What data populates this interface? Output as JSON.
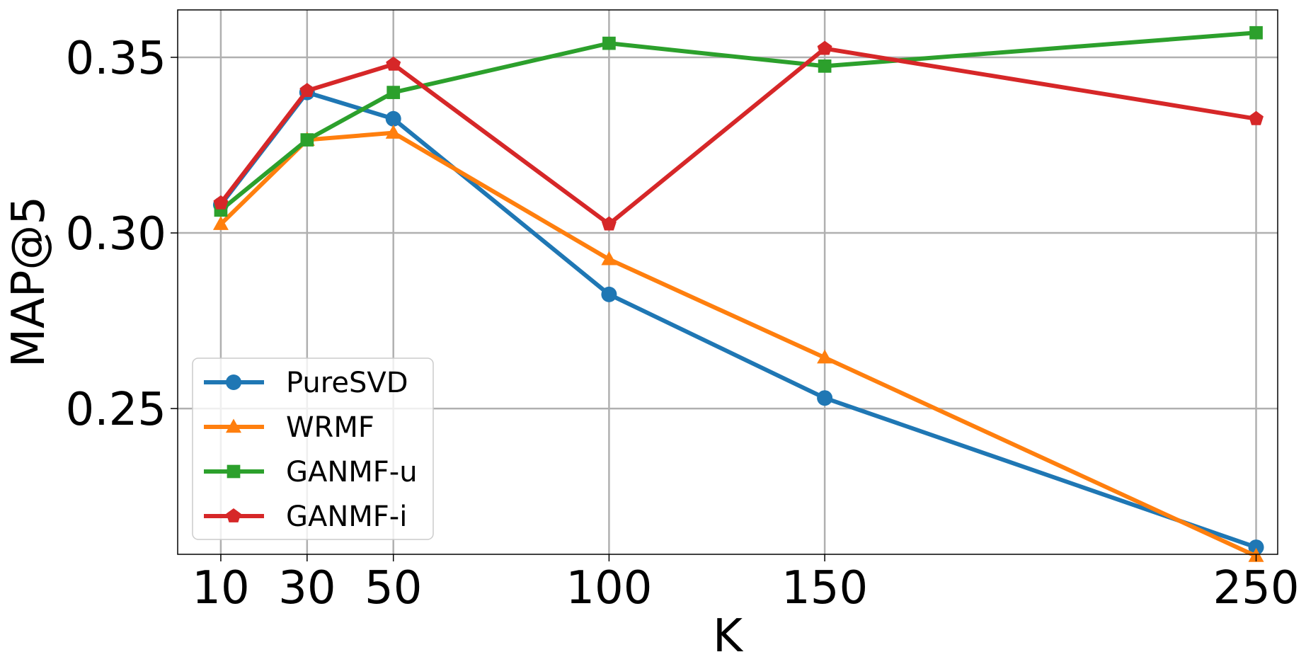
{
  "chart_data": {
    "type": "line",
    "title": "",
    "xlabel": "K",
    "ylabel": "MAP@5",
    "x": [
      10,
      30,
      50,
      100,
      150,
      250
    ],
    "x_tick_labels": [
      "10",
      "30",
      "50",
      "100",
      "150",
      "250"
    ],
    "y_ticks": [
      0.25,
      0.3,
      0.35
    ],
    "y_tick_labels": [
      "0.25",
      "0.30",
      "0.35"
    ],
    "xlim": [
      0,
      255
    ],
    "ylim": [
      0.2085,
      0.3635
    ],
    "grid": true,
    "legend_position": "lower-left",
    "series": [
      {
        "name": "PureSVD",
        "color": "#1f77b4",
        "marker": "circle",
        "values": [
          0.308,
          0.34,
          0.3325,
          0.2825,
          0.253,
          0.2105
        ]
      },
      {
        "name": "WRMF",
        "color": "#ff7f0e",
        "marker": "triangle",
        "values": [
          0.3025,
          0.3265,
          0.3285,
          0.2925,
          0.2645,
          0.208
        ]
      },
      {
        "name": "GANMF-u",
        "color": "#2ca02c",
        "marker": "square",
        "values": [
          0.3065,
          0.3265,
          0.34,
          0.354,
          0.3475,
          0.357
        ]
      },
      {
        "name": "GANMF-i",
        "color": "#d62728",
        "marker": "pentagon",
        "values": [
          0.3085,
          0.3405,
          0.348,
          0.3025,
          0.3525,
          0.3325
        ]
      }
    ]
  }
}
